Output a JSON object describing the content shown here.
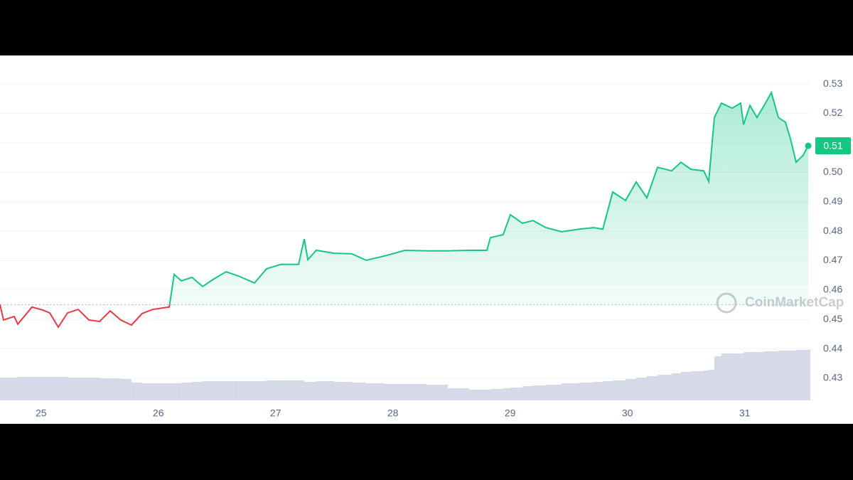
{
  "chart_data": {
    "type": "line",
    "x": [
      24.65,
      24.68,
      24.771,
      24.802,
      24.923,
      25.014,
      25.074,
      25.147,
      25.226,
      25.317,
      25.408,
      25.499,
      25.59,
      25.68,
      25.771,
      25.862,
      25.953,
      26.093,
      26.135,
      26.196,
      26.287,
      26.378,
      26.468,
      26.578,
      26.681,
      26.82,
      26.923,
      27.044,
      27.196,
      27.244,
      27.275,
      27.347,
      27.499,
      27.65,
      27.772,
      27.923,
      28.105,
      28.287,
      28.469,
      28.65,
      28.802,
      28.832,
      28.941,
      29.002,
      29.105,
      29.196,
      29.305,
      29.439,
      29.59,
      29.711,
      29.79,
      29.875,
      29.984,
      30.075,
      30.166,
      30.257,
      30.378,
      30.457,
      30.542,
      30.651,
      30.693,
      30.742,
      30.802,
      30.893,
      30.966,
      30.99,
      31.045,
      31.105,
      31.166,
      31.227,
      31.287,
      31.348,
      31.39,
      31.439,
      31.499,
      31.542
    ],
    "series": [
      {
        "color": "#16c784",
        "below_color": "#ea3943",
        "values": [
          0.4551,
          0.4498,
          0.451,
          0.4484,
          0.4542,
          0.4532,
          0.4522,
          0.4474,
          0.4522,
          0.4534,
          0.4498,
          0.4493,
          0.4529,
          0.4498,
          0.4481,
          0.452,
          0.4534,
          0.4542,
          0.4653,
          0.4631,
          0.4643,
          0.4612,
          0.4636,
          0.4662,
          0.4648,
          0.4624,
          0.4672,
          0.4687,
          0.4687,
          0.4773,
          0.4703,
          0.4735,
          0.4725,
          0.4723,
          0.4701,
          0.4715,
          0.4735,
          0.4733,
          0.4733,
          0.4735,
          0.4735,
          0.4778,
          0.4788,
          0.4856,
          0.4827,
          0.4836,
          0.4812,
          0.4798,
          0.4807,
          0.4812,
          0.4807,
          0.4933,
          0.4904,
          0.4967,
          0.4913,
          0.5017,
          0.5005,
          0.5034,
          0.501,
          0.5005,
          0.4969,
          0.5186,
          0.5235,
          0.5218,
          0.5235,
          0.5162,
          0.5227,
          0.5186,
          0.5227,
          0.5271,
          0.5186,
          0.517,
          0.5114,
          0.5034,
          0.5058,
          0.509
        ]
      }
    ],
    "volume": {
      "color": "#d6d9e8",
      "ylim": [
        0,
        100
      ],
      "values": [
        32,
        32,
        32,
        33,
        33,
        33,
        33,
        33,
        32,
        32,
        32,
        31,
        31,
        30,
        25,
        24,
        24,
        24,
        24,
        25,
        26,
        27,
        27,
        27,
        27,
        27,
        28,
        28,
        28,
        26,
        26,
        27,
        26,
        25,
        24,
        23,
        23,
        22,
        17,
        15,
        15,
        16,
        17,
        18,
        20,
        21,
        22,
        24,
        25,
        26,
        27,
        28,
        30,
        32,
        34,
        36,
        38,
        40,
        41,
        42,
        43,
        62,
        66,
        66,
        66,
        68,
        68,
        68,
        69,
        69,
        70,
        70,
        70,
        71,
        71,
        71
      ]
    },
    "baseline": 0.455,
    "last_label": "0.51",
    "watermark": "CoinMarketCap",
    "xlim": [
      24.65,
      31.56
    ],
    "xticks": [
      25,
      26,
      27,
      28,
      29,
      30,
      31
    ],
    "ylim": [
      0.4225,
      0.5397
    ],
    "yticks": [
      0.43,
      0.44,
      0.45,
      0.46,
      0.47,
      0.48,
      0.49,
      {
        "value": 0.5,
        "label": "0.50"
      },
      0.51,
      0.52,
      0.53
    ],
    "grid": true
  }
}
